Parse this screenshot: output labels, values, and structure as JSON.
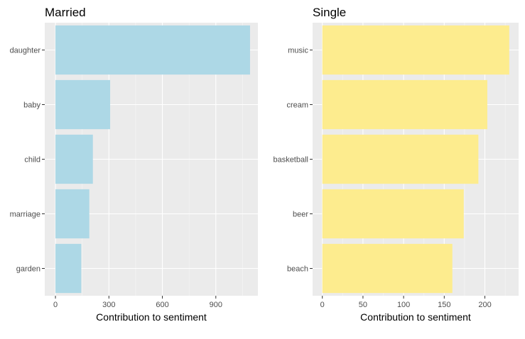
{
  "chart_data": [
    {
      "type": "bar",
      "orientation": "horizontal",
      "title": "Married",
      "xlabel": "Contribution to sentiment",
      "ylabel": "",
      "categories": [
        "daughter",
        "baby",
        "child",
        "marriage",
        "garden"
      ],
      "values": [
        1092,
        307,
        210,
        190,
        145
      ],
      "xlim": [
        -60,
        1136
      ],
      "xticks": [
        0,
        300,
        600,
        900
      ],
      "bar_color": "#add8e6",
      "panel_background": "#ebebeb",
      "grid": true,
      "legend": "none"
    },
    {
      "type": "bar",
      "orientation": "horizontal",
      "title": "Single",
      "xlabel": "Contribution to sentiment",
      "ylabel": "",
      "categories": [
        "music",
        "cream",
        "basketball",
        "beer",
        "beach"
      ],
      "values": [
        230,
        203,
        192,
        174,
        160
      ],
      "xlim": [
        -12,
        241.5
      ],
      "xticks": [
        0,
        50,
        100,
        150,
        200
      ],
      "bar_color": "#fdec8e",
      "panel_background": "#ebebeb",
      "grid": true,
      "legend": "none"
    }
  ]
}
